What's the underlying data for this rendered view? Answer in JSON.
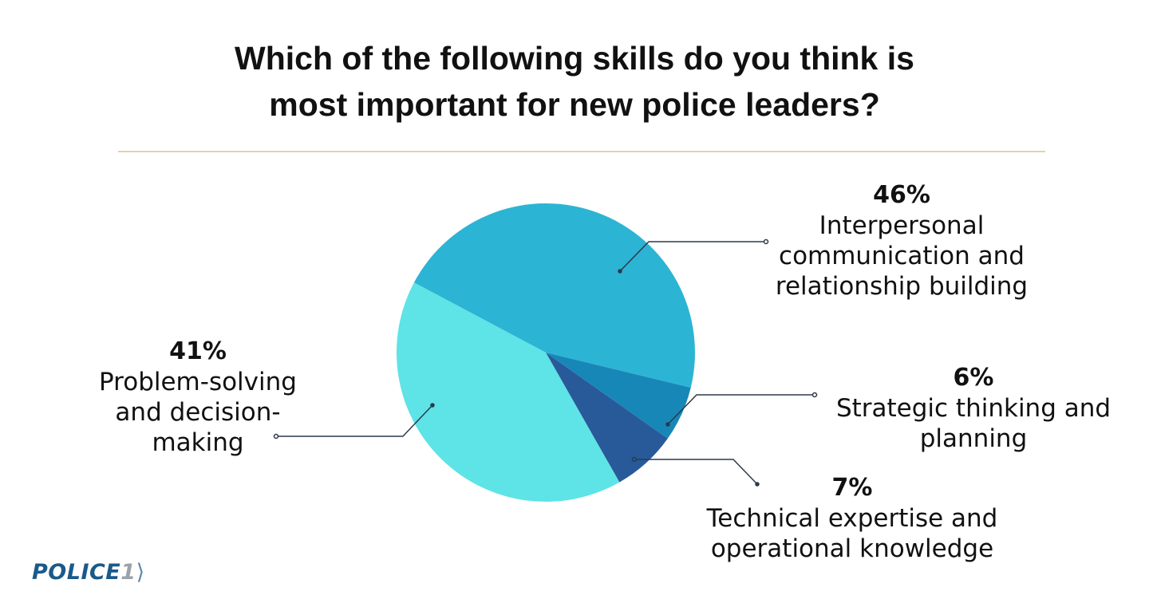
{
  "chart_data": {
    "type": "pie",
    "title": "Which of the following skills do you think is most important for new police leaders?",
    "title_lines": [
      "Which of the following skills do you think is",
      "most important for new police leaders?"
    ],
    "slices": [
      {
        "label": "Interpersonal communication and relationship building",
        "label_lines": [
          "Interpersonal",
          "communication and",
          "relationship building"
        ],
        "value": 46,
        "value_label": "46%",
        "color": "#2cb4d4"
      },
      {
        "label": "Strategic thinking and planning",
        "label_lines": [
          "Strategic thinking and",
          "planning"
        ],
        "value": 6,
        "value_label": "6%",
        "color": "#1787b8"
      },
      {
        "label": "Technical expertise and operational knowledge",
        "label_lines": [
          "Technical expertise and",
          "operational knowledge"
        ],
        "value": 7,
        "value_label": "7%",
        "color": "#285a9a"
      },
      {
        "label": "Problem-solving and decision-making",
        "label_lines": [
          "Problem-solving",
          "and decision-",
          "making"
        ],
        "value": 41,
        "value_label": "41%",
        "color": "#5ee3e6"
      }
    ],
    "start_angle_deg": 298,
    "direction": "clockwise"
  },
  "logo": {
    "text": "POLICE",
    "number": "1"
  },
  "colors": {
    "rule": "#e3d0b3",
    "leader": "#2b3a4a"
  }
}
